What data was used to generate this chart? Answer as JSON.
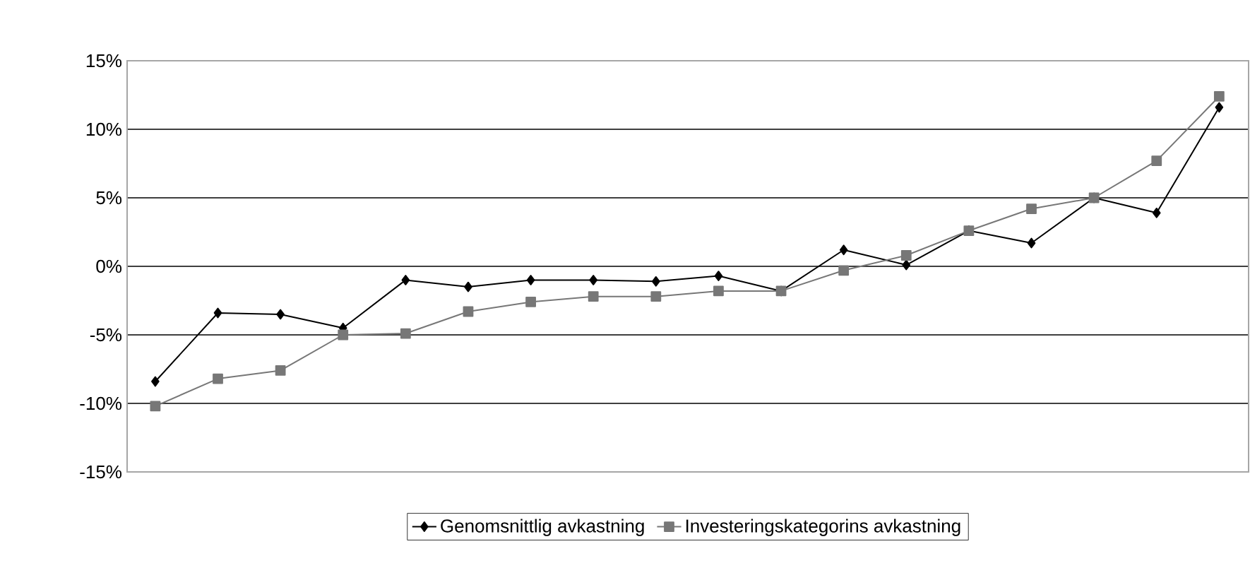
{
  "chart_data": {
    "type": "line",
    "categories": [
      null,
      null,
      null,
      null,
      null,
      null,
      null,
      null,
      null,
      null,
      null,
      null,
      null,
      null,
      null,
      null,
      null,
      null
    ],
    "series": [
      {
        "name": "Genomsnittlig avkastning",
        "color": "#000000",
        "marker": "diamond",
        "values": [
          -8.4,
          -3.4,
          -3.5,
          -4.5,
          -1.0,
          -1.5,
          -1.0,
          -1.0,
          -1.1,
          -0.7,
          -1.8,
          1.2,
          0.1,
          2.6,
          1.7,
          5.0,
          3.9,
          11.6
        ]
      },
      {
        "name": "Investeringskategorins avkastning",
        "color": "#777777",
        "marker": "square",
        "values": [
          -10.2,
          -8.2,
          -7.6,
          -5.0,
          -4.9,
          -3.3,
          -2.6,
          -2.2,
          -2.2,
          -1.8,
          -1.8,
          -0.3,
          0.8,
          2.6,
          4.2,
          5.0,
          7.7,
          12.4
        ]
      }
    ],
    "ylim": [
      -15,
      15
    ],
    "yticks": [
      {
        "value": -15,
        "label": "-15%"
      },
      {
        "value": -10,
        "label": "-10%"
      },
      {
        "value": -5,
        "label": "-5%"
      },
      {
        "value": 0,
        "label": "0%"
      },
      {
        "value": 5,
        "label": "5%"
      },
      {
        "value": 10,
        "label": "10%"
      },
      {
        "value": 15,
        "label": "15%"
      }
    ],
    "grid": "y",
    "legend": "bottom"
  }
}
